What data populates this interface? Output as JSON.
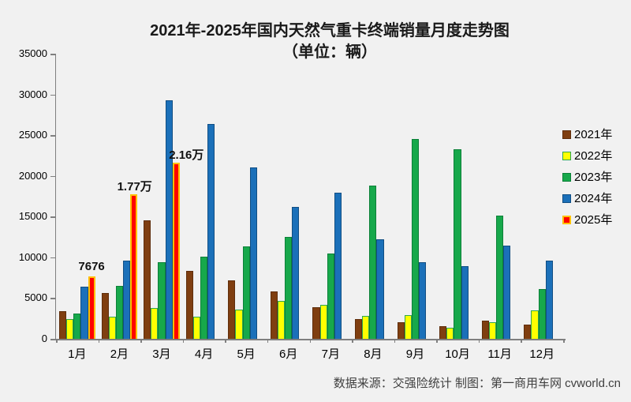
{
  "title": {
    "line1": "2021年-2025年国内天然气重卡终端销量月度走势图",
    "line2": "（单位：辆）"
  },
  "footer": {
    "text": "数据来源：交强险统计  制图：第一商用车网 cvworld.cn"
  },
  "chart_data": {
    "type": "bar",
    "title": "2021年-2025年国内天然气重卡终端销量月度走势图（单位：辆）",
    "categories": [
      "1月",
      "2月",
      "3月",
      "4月",
      "5月",
      "6月",
      "7月",
      "8月",
      "9月",
      "10月",
      "11月",
      "12月"
    ],
    "series": [
      {
        "name": "2021年",
        "fill": "#7f3e10",
        "border": "#5f2e0c",
        "border_width": 1,
        "values": [
          3400,
          5600,
          14500,
          8300,
          7200,
          5800,
          3900,
          2400,
          2000,
          1600,
          2200,
          1700
        ]
      },
      {
        "name": "2022年",
        "fill": "#ffff00",
        "border": "#2ea84e",
        "border_width": 1,
        "values": [
          2400,
          2700,
          3800,
          2700,
          3600,
          4700,
          4200,
          2800,
          2900,
          1400,
          2000,
          3500
        ]
      },
      {
        "name": "2023年",
        "fill": "#17a84b",
        "border": "#0c8038",
        "border_width": 1,
        "values": [
          3100,
          6500,
          9400,
          10100,
          11300,
          12500,
          10500,
          18800,
          24500,
          23300,
          15100,
          6100
        ]
      },
      {
        "name": "2024年",
        "fill": "#1b70b9",
        "border": "#114e83",
        "border_width": 1,
        "values": [
          6400,
          9600,
          29300,
          26400,
          21000,
          16200,
          17900,
          12200,
          9400,
          8900,
          11400,
          9600
        ]
      },
      {
        "name": "2025年",
        "fill": "#fe0000",
        "border": "#ffc000",
        "border_width": 2,
        "values": [
          7676,
          17700,
          21600,
          null,
          null,
          null,
          null,
          null,
          null,
          null,
          null,
          null
        ]
      }
    ],
    "annotations": [
      {
        "text": "7676",
        "month_index": 0,
        "series_index": 4,
        "dx": 0
      },
      {
        "text": "1.77万",
        "month_index": 1,
        "series_index": 4,
        "dx": 1
      },
      {
        "text": "2.16万",
        "month_index": 2,
        "series_index": 4,
        "dx": 13
      }
    ],
    "xlabel": "",
    "ylabel": "",
    "ylim": [
      0,
      35000
    ],
    "y_ticks": [
      0,
      5000,
      10000,
      15000,
      20000,
      25000,
      30000,
      35000
    ],
    "grid": false,
    "legend_position": "right",
    "axis_color": "#7f7f7f",
    "text_color": "#000000"
  }
}
